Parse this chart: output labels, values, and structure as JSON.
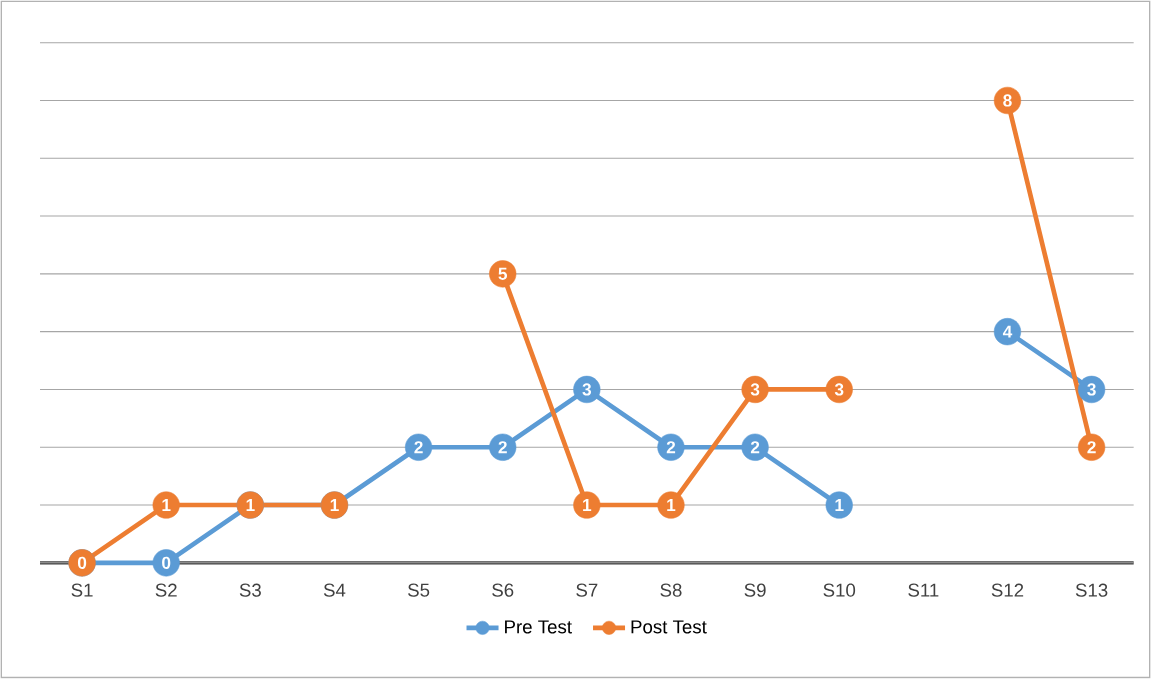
{
  "chart_data": {
    "type": "line",
    "categories": [
      "S1",
      "S2",
      "S3",
      "S4",
      "S5",
      "S6",
      "S7",
      "S8",
      "S9",
      "S10",
      "S11",
      "S12",
      "S13"
    ],
    "series": [
      {
        "name": "Pre Test",
        "color": "#5b9bd5",
        "values": [
          0,
          0,
          1,
          1,
          2,
          2,
          3,
          2,
          2,
          1,
          null,
          4,
          3
        ],
        "value_labels": [
          null,
          "0",
          null,
          null,
          "2",
          "2",
          "3",
          "2",
          "2",
          "1",
          null,
          "4",
          "3"
        ]
      },
      {
        "name": "Post Test",
        "color": "#ed7d31",
        "values": [
          0,
          1,
          1,
          1,
          null,
          5,
          1,
          1,
          3,
          3,
          null,
          8,
          2
        ],
        "value_labels": [
          "0",
          "1",
          "1",
          "1",
          null,
          "5",
          "1",
          "1",
          "3",
          "3",
          null,
          "8",
          "2"
        ]
      }
    ],
    "ylim": [
      0,
      9
    ],
    "yticks": [
      {
        "value": 0,
        "label": null
      },
      {
        "value": 1,
        "label": null
      },
      {
        "value": 2,
        "label": null
      },
      {
        "value": 3,
        "label": null
      },
      {
        "value": 4,
        "label": null
      },
      {
        "value": 5,
        "label": null
      },
      {
        "value": 6,
        "label": null
      },
      {
        "value": 7,
        "label": null
      },
      {
        "value": 8,
        "label": null
      },
      {
        "value": 9,
        "label": null
      }
    ],
    "grid": "y",
    "legend": "bottom",
    "tick_labels": "x",
    "marker": "circle",
    "line_style": "solid"
  }
}
